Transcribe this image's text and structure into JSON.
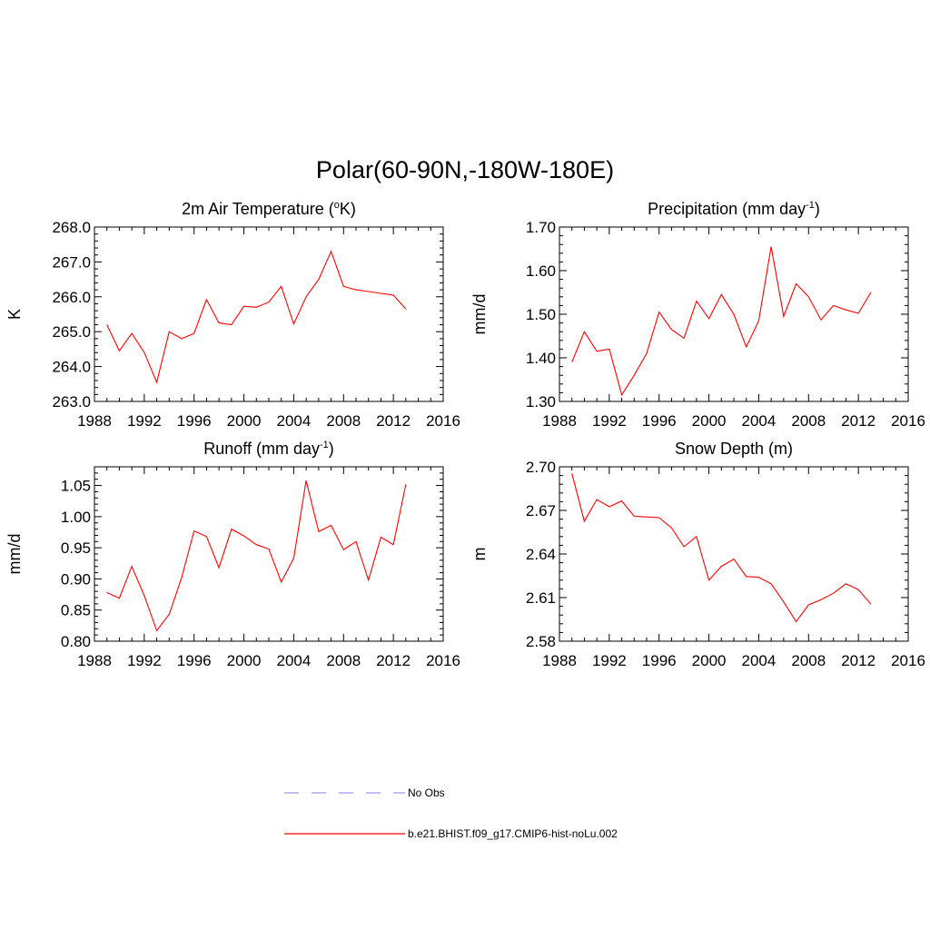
{
  "title": "Polar(60-90N,-180W-180E)",
  "legend": [
    {
      "label": "No Obs",
      "color": "#9999ee",
      "dash": true
    },
    {
      "label": "b.e21.BHIST.f09_g17.CMIP6-hist-noLu.002",
      "color": "#ff0000",
      "dash": false
    }
  ],
  "chart_data": [
    {
      "type": "line",
      "title_main": "2m Air Temperature (",
      "title_sup": "o",
      "title_tail": "K)",
      "ylabel": "K",
      "xlim": [
        1988,
        2016
      ],
      "ylim": [
        263.0,
        268.0
      ],
      "xticks": [
        1988,
        1992,
        1996,
        2000,
        2004,
        2008,
        2012,
        2016
      ],
      "yticks": [
        263.0,
        264.0,
        265.0,
        266.0,
        267.0,
        268.0
      ],
      "ytick_labels": [
        "263.0",
        "264.0",
        "265.0",
        "266.0",
        "267.0",
        "268.0"
      ],
      "series_color": "#ff0000",
      "x": [
        1989,
        1990,
        1991,
        1992,
        1993,
        1994,
        1995,
        1996,
        1997,
        1998,
        1999,
        2000,
        2001,
        2002,
        2003,
        2004,
        2005,
        2006,
        2007,
        2008,
        2009,
        2010,
        2011,
        2012,
        2013
      ],
      "y": [
        265.2,
        264.45,
        264.95,
        264.4,
        263.55,
        265.0,
        264.8,
        264.95,
        265.92,
        265.25,
        265.2,
        265.73,
        265.7,
        265.85,
        266.3,
        265.22,
        266.0,
        266.5,
        267.3,
        266.3,
        266.2,
        266.15,
        266.1,
        266.05,
        265.65
      ]
    },
    {
      "type": "line",
      "title_main": "Precipitation (mm day",
      "title_sup": "-1",
      "title_tail": ")",
      "ylabel": "mm/d",
      "xlim": [
        1988,
        2016
      ],
      "ylim": [
        1.3,
        1.7
      ],
      "xticks": [
        1988,
        1992,
        1996,
        2000,
        2004,
        2008,
        2012,
        2016
      ],
      "yticks": [
        1.3,
        1.4,
        1.5,
        1.6,
        1.7
      ],
      "ytick_labels": [
        "1.30",
        "1.40",
        "1.50",
        "1.60",
        "1.70"
      ],
      "series_color": "#ff0000",
      "x": [
        1989,
        1990,
        1991,
        1992,
        1993,
        1994,
        1995,
        1996,
        1997,
        1998,
        1999,
        2000,
        2001,
        2002,
        2003,
        2004,
        2005,
        2006,
        2007,
        2008,
        2009,
        2010,
        2011,
        2012,
        2013
      ],
      "y": [
        1.39,
        1.46,
        1.415,
        1.42,
        1.315,
        1.36,
        1.41,
        1.505,
        1.465,
        1.445,
        1.53,
        1.49,
        1.545,
        1.5,
        1.425,
        1.485,
        1.655,
        1.495,
        1.57,
        1.54,
        1.487,
        1.52,
        1.51,
        1.502,
        1.55
      ]
    },
    {
      "type": "line",
      "title_main": "Runoff (mm day",
      "title_sup": "-1",
      "title_tail": ")",
      "ylabel": "mm/d",
      "xlim": [
        1988,
        2016
      ],
      "ylim": [
        0.8,
        1.08
      ],
      "xticks": [
        1988,
        1992,
        1996,
        2000,
        2004,
        2008,
        2012,
        2016
      ],
      "yticks": [
        0.8,
        0.85,
        0.9,
        0.95,
        1.0,
        1.05
      ],
      "ytick_labels": [
        "0.80",
        "0.85",
        "0.90",
        "0.95",
        "1.00",
        "1.05"
      ],
      "series_color": "#ff0000",
      "x": [
        1989,
        1990,
        1991,
        1992,
        1993,
        1994,
        1995,
        1996,
        1997,
        1998,
        1999,
        2000,
        2001,
        2002,
        2003,
        2004,
        2005,
        2006,
        2007,
        2008,
        2009,
        2010,
        2011,
        2012,
        2013
      ],
      "y": [
        0.878,
        0.869,
        0.92,
        0.873,
        0.817,
        0.843,
        0.902,
        0.977,
        0.968,
        0.918,
        0.98,
        0.969,
        0.955,
        0.948,
        0.895,
        0.933,
        1.058,
        0.976,
        0.986,
        0.947,
        0.96,
        0.898,
        0.967,
        0.955,
        1.052
      ]
    },
    {
      "type": "line",
      "title_main": "Snow Depth (m)",
      "title_sup": "",
      "title_tail": "",
      "ylabel": "m",
      "xlim": [
        1988,
        2016
      ],
      "ylim": [
        2.58,
        2.7
      ],
      "xticks": [
        1988,
        1992,
        1996,
        2000,
        2004,
        2008,
        2012,
        2016
      ],
      "yticks": [
        2.58,
        2.61,
        2.64,
        2.67,
        2.7
      ],
      "ytick_labels": [
        "2.58",
        "2.61",
        "2.64",
        "2.67",
        "2.70"
      ],
      "series_color": "#ff0000",
      "x": [
        1989,
        1990,
        1991,
        1992,
        1993,
        1994,
        1995,
        1996,
        1997,
        1998,
        1999,
        2000,
        2001,
        2002,
        2003,
        2004,
        2005,
        2006,
        2007,
        2008,
        2009,
        2010,
        2011,
        2012,
        2013
      ],
      "y": [
        2.6955,
        2.6625,
        2.6775,
        2.6725,
        2.6765,
        2.666,
        2.6655,
        2.665,
        2.658,
        2.645,
        2.652,
        2.622,
        2.6315,
        2.6365,
        2.6245,
        2.624,
        2.6195,
        2.607,
        2.5935,
        2.605,
        2.6085,
        2.613,
        2.6195,
        2.6155,
        2.6055
      ]
    }
  ]
}
